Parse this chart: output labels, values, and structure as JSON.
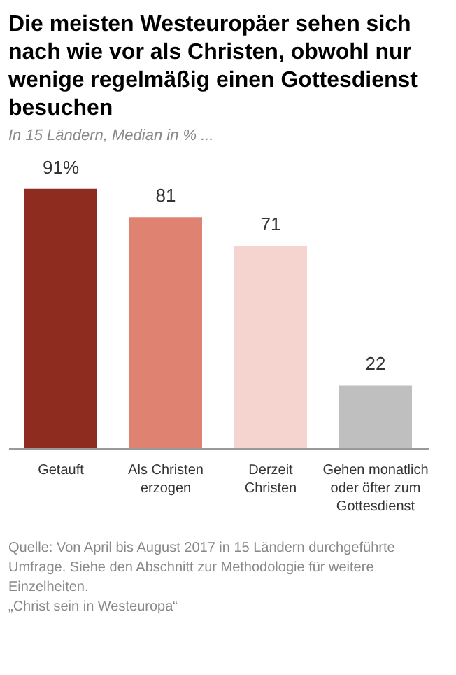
{
  "chart_data": {
    "type": "bar",
    "title": "Die meisten Westeuropäer sehen sich nach wie vor als Christen, obwohl nur wenige regelmäßig einen Gottesdienst besuchen",
    "subtitle": "In 15 Ländern, Median in % ...",
    "categories": [
      "Getauft",
      "Als Christen erzogen",
      "Derzeit Christen",
      "Gehen monatlich oder öfter zum Gottesdienst"
    ],
    "values": [
      91,
      81,
      71,
      22
    ],
    "colors": [
      "#8e2c1f",
      "#e08272",
      "#f5d4cf",
      "#bfbfbf"
    ],
    "value_labels": [
      "91%",
      "81",
      "71",
      "22"
    ],
    "annotations": [
      "Quelle: Von April bis August 2017 in 15 Ländern durchgeführte Umfrage. Siehe den Abschnitt zur Methodologie für weitere Einzelheiten.",
      "„Christ sein in Westeuropa“"
    ]
  }
}
